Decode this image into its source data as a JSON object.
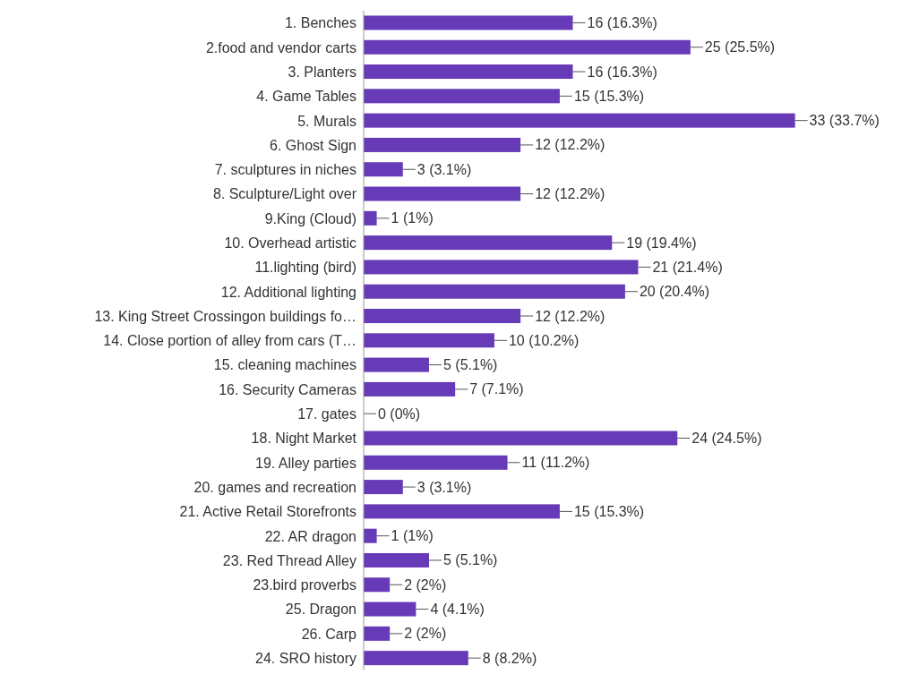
{
  "chart_data": {
    "type": "bar",
    "orientation": "horizontal",
    "categories": [
      "1. Benches",
      "2.food and vendor carts",
      "3. Planters",
      "4. Game Tables",
      "5. Murals",
      "6. Ghost Sign",
      "7. sculptures in niches",
      "8. Sculpture/Light over",
      "9.King (Cloud)",
      "10. Overhead artistic",
      "11.lighting (bird)",
      "12. Additional lighting",
      "13. King Street Crossingon buildings fo…",
      "14. Close portion of alley from cars (T…",
      "15. cleaning machines",
      "16. Security Cameras",
      "17. gates",
      "18. Night Market",
      "19. Alley parties",
      "20. games and recreation",
      "21. Active Retail Storefronts",
      "22. AR dragon",
      "23. Red Thread Alley",
      "23.bird proverbs",
      "25. Dragon",
      "26. Carp",
      "24. SRO history"
    ],
    "values": [
      16,
      25,
      16,
      15,
      33,
      12,
      3,
      12,
      1,
      19,
      21,
      20,
      12,
      10,
      5,
      7,
      0,
      24,
      11,
      3,
      15,
      1,
      5,
      2,
      4,
      2,
      8
    ],
    "value_labels": [
      "16 (16.3%)",
      "25 (25.5%)",
      "16 (16.3%)",
      "15 (15.3%)",
      "33 (33.7%)",
      "12 (12.2%)",
      "3 (3.1%)",
      "12 (12.2%)",
      "1 (1%)",
      "19 (19.4%)",
      "21 (21.4%)",
      "20 (20.4%)",
      "12 (12.2%)",
      "10 (10.2%)",
      "5 (5.1%)",
      "7 (7.1%)",
      "0 (0%)",
      "24 (24.5%)",
      "11 (11.2%)",
      "3 (3.1%)",
      "15 (15.3%)",
      "1 (1%)",
      "5 (5.1%)",
      "2 (2%)",
      "4 (4.1%)",
      "2 (2%)",
      "8 (8.2%)"
    ],
    "color": "#673ab7",
    "tick_labels": "y"
  }
}
